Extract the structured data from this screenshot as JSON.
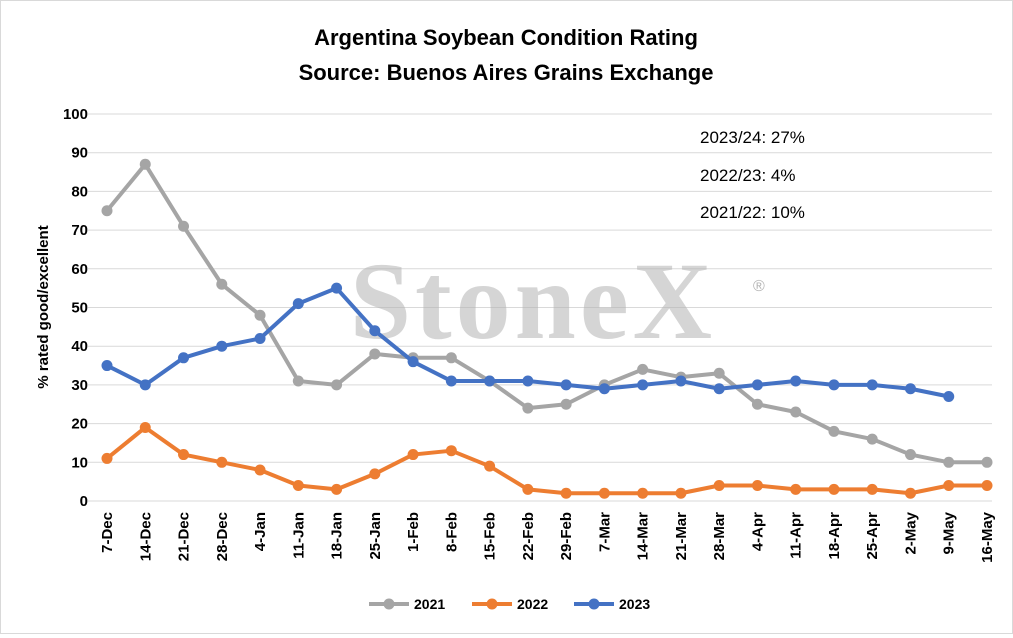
{
  "chart_data": {
    "type": "line",
    "title": "Argentina Soybean Condition Rating",
    "subtitle": "Source: Buenos Aires Grains Exchange",
    "xlabel": "",
    "ylabel": "% rated good/excellent",
    "ylim": [
      0,
      100
    ],
    "yticks": [
      0,
      10,
      20,
      30,
      40,
      50,
      60,
      70,
      80,
      90,
      100
    ],
    "grid": true,
    "legend_position": "bottom",
    "categories": [
      "7-Dec",
      "14-Dec",
      "21-Dec",
      "28-Dec",
      "4-Jan",
      "11-Jan",
      "18-Jan",
      "25-Jan",
      "1-Feb",
      "8-Feb",
      "15-Feb",
      "22-Feb",
      "29-Feb",
      "7-Mar",
      "14-Mar",
      "21-Mar",
      "28-Mar",
      "4-Apr",
      "11-Apr",
      "18-Apr",
      "25-Apr",
      "2-May",
      "9-May",
      "16-May"
    ],
    "series": [
      {
        "name": "2021",
        "color": "#a5a5a5",
        "values": [
          75,
          87,
          71,
          56,
          48,
          31,
          30,
          38,
          37,
          37,
          31,
          24,
          25,
          30,
          34,
          32,
          33,
          25,
          23,
          18,
          16,
          12,
          10,
          10
        ]
      },
      {
        "name": "2022",
        "color": "#ed7d31",
        "values": [
          11,
          19,
          12,
          10,
          8,
          4,
          3,
          7,
          12,
          13,
          9,
          3,
          2,
          2,
          2,
          2,
          4,
          4,
          3,
          3,
          3,
          2,
          4,
          4
        ]
      },
      {
        "name": "2023",
        "color": "#4472c4",
        "values": [
          35,
          30,
          37,
          40,
          42,
          51,
          55,
          44,
          36,
          31,
          31,
          31,
          30,
          29,
          30,
          31,
          29,
          30,
          31,
          30,
          30,
          29,
          27,
          null
        ]
      }
    ],
    "annotations": [
      "2023/24: 27%",
      "2022/23: 4%",
      "2021/22: 10%"
    ]
  },
  "watermark": "StoneX",
  "watermark_mark": "®"
}
